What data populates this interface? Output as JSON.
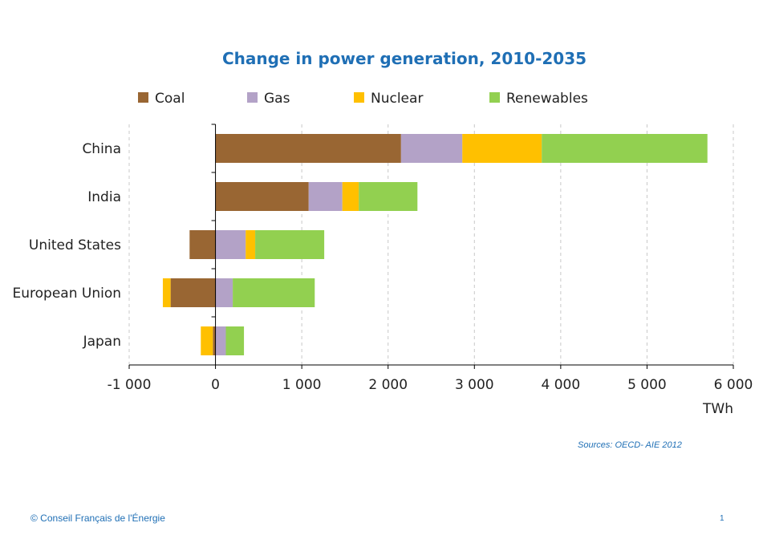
{
  "chart_data": {
    "type": "bar",
    "orientation": "horizontal",
    "stacked": true,
    "title": "Change in power generation, 2010-2035",
    "xlabel": "TWh",
    "categories": [
      "China",
      "India",
      "United States",
      "European Union",
      "Japan"
    ],
    "series": [
      {
        "name": "Coal",
        "color": "#996633",
        "values": [
          2150,
          1080,
          -300,
          -520,
          -30
        ]
      },
      {
        "name": "Gas",
        "color": "#b3a2c7",
        "values": [
          710,
          390,
          350,
          200,
          120
        ]
      },
      {
        "name": "Nuclear",
        "color": "#ffc000",
        "values": [
          920,
          190,
          110,
          -90,
          -140
        ]
      },
      {
        "name": "Renewables",
        "color": "#92d050",
        "values": [
          1920,
          680,
          800,
          950,
          210
        ]
      }
    ],
    "xlim": [
      -1000,
      6000
    ],
    "xticks": [
      -1000,
      0,
      1000,
      2000,
      3000,
      4000,
      5000,
      6000
    ],
    "xtick_labels": [
      "-1 000",
      "0",
      "1 000",
      "2 000",
      "3 000",
      "4 000",
      "5 000",
      "6 000"
    ],
    "grid": "vertical-dashed",
    "legend_position": "top"
  },
  "source": "Sources: OECD- AIE 2012",
  "footer": {
    "copyright": "© Conseil Français de l'Énergie",
    "page_number": "1"
  }
}
